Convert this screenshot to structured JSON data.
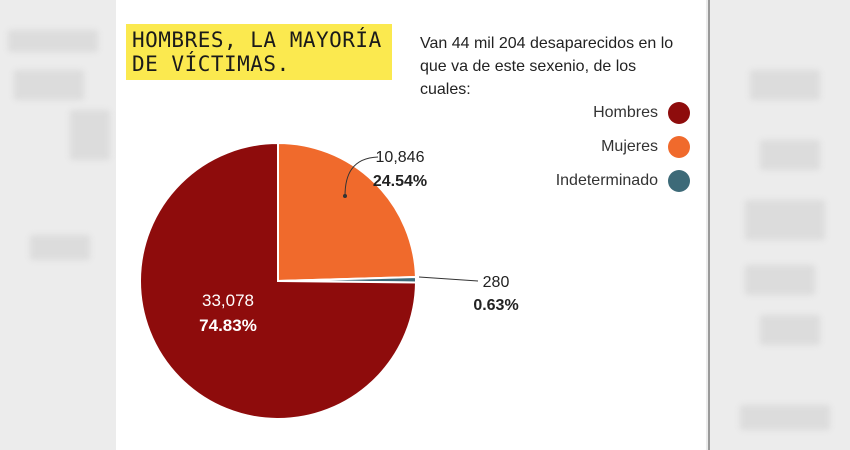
{
  "title": "HOMBRES, LA MAYORÍA DE VÍCTIMAS.",
  "subtitle": "Van 44 mil 204 desaparecidos en lo que va de este sexenio, de los cuales:",
  "colors": {
    "Hombres": "#8e0c0c",
    "Mujeres": "#f06a2c",
    "Indeterminado": "#3d6a78"
  },
  "chart_data": {
    "type": "pie",
    "title": "HOMBRES, LA MAYORÍA DE VÍCTIMAS.",
    "slices": [
      {
        "name": "Hombres",
        "value": 33078,
        "value_label": "33,078",
        "percent_label": "74.83%"
      },
      {
        "name": "Mujeres",
        "value": 10846,
        "value_label": "10,846",
        "percent_label": "24.54%"
      },
      {
        "name": "Indeterminado",
        "value": 280,
        "value_label": "280",
        "percent_label": "0.63%"
      }
    ],
    "legend": [
      "Hombres",
      "Mujeres",
      "Indeterminado"
    ],
    "legend_position": "top-right"
  }
}
